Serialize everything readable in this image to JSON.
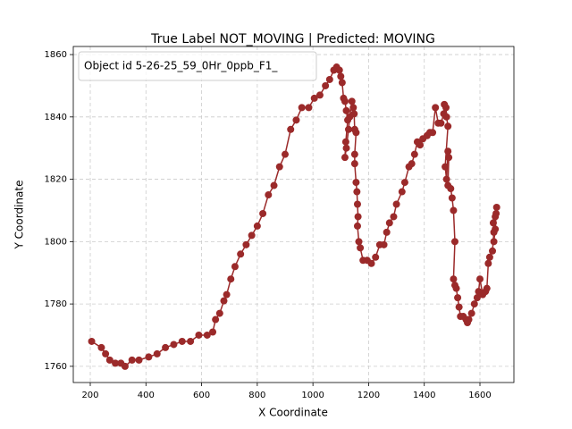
{
  "chart_data": {
    "type": "line",
    "title": "True Label NOT_MOVING | Predicted: MOVING",
    "x_label": "X Coordinate",
    "y_label": "Y Coordinate",
    "xlim": [
      139,
      1722
    ],
    "ylim": [
      1754.8,
      1862.6
    ],
    "xticks": [
      200,
      400,
      600,
      800,
      1000,
      1200,
      1400,
      1600
    ],
    "yticks": [
      1760,
      1780,
      1800,
      1820,
      1840,
      1860
    ],
    "grid": true,
    "legend": "upper left",
    "series": [
      {
        "name": "Object id 5-26-25_59_0Hr_0ppb_F1_",
        "color": "#9b2a2a",
        "x": [
          205,
          240,
          255,
          270,
          290,
          310,
          325,
          350,
          375,
          410,
          440,
          470,
          500,
          530,
          560,
          590,
          620,
          640,
          650,
          665,
          680,
          690,
          705,
          720,
          740,
          760,
          780,
          800,
          820,
          840,
          860,
          880,
          900,
          920,
          940,
          960,
          985,
          1005,
          1025,
          1045,
          1060,
          1075,
          1085,
          1095,
          1100,
          1105,
          1110,
          1115,
          1120,
          1125,
          1118,
          1115,
          1120,
          1128,
          1132,
          1140,
          1145,
          1148,
          1150,
          1155,
          1150,
          1150,
          1155,
          1158,
          1160,
          1162,
          1160,
          1165,
          1170,
          1180,
          1195,
          1210,
          1225,
          1240,
          1255,
          1265,
          1275,
          1290,
          1300,
          1320,
          1330,
          1345,
          1355,
          1365,
          1375,
          1385,
          1395,
          1410,
          1420,
          1430,
          1440,
          1450,
          1460,
          1470,
          1472,
          1478,
          1480,
          1485,
          1475,
          1480,
          1485,
          1488,
          1485,
          1495,
          1500,
          1505,
          1510,
          1505,
          1510,
          1515,
          1520,
          1525,
          1530,
          1540,
          1550,
          1555,
          1560,
          1570,
          1580,
          1590,
          1595,
          1600,
          1610,
          1620,
          1625,
          1630,
          1635,
          1645,
          1650,
          1648,
          1655,
          1660,
          1658,
          1655,
          1650
        ],
        "values": [
          1768,
          1766,
          1764,
          1762,
          1761,
          1761,
          1760,
          1762,
          1762,
          1763,
          1764,
          1766,
          1767,
          1768,
          1768,
          1770,
          1770,
          1771,
          1775,
          1777,
          1781,
          1783,
          1788,
          1792,
          1796,
          1799,
          1802,
          1805,
          1809,
          1815,
          1818,
          1824,
          1828,
          1836,
          1839,
          1843,
          1843,
          1846,
          1847,
          1850,
          1852,
          1855,
          1856,
          1855,
          1853,
          1851,
          1846,
          1845,
          1842,
          1839,
          1832,
          1827,
          1830,
          1836,
          1840,
          1845,
          1843,
          1841,
          1836,
          1835,
          1828,
          1825,
          1819,
          1816,
          1812,
          1808,
          1805,
          1800,
          1798,
          1794,
          1794,
          1793,
          1795,
          1799,
          1799,
          1803,
          1806,
          1808,
          1812,
          1816,
          1819,
          1824,
          1825,
          1828,
          1832,
          1831,
          1833,
          1834,
          1835,
          1835,
          1843,
          1838,
          1838,
          1841,
          1844,
          1843,
          1840,
          1837,
          1824,
          1820,
          1829,
          1827,
          1818,
          1817,
          1814,
          1810,
          1800,
          1788,
          1786,
          1785,
          1782,
          1779,
          1776,
          1776,
          1775,
          1774,
          1775,
          1777,
          1780,
          1782,
          1784,
          1788,
          1783,
          1784,
          1785,
          1793,
          1795,
          1797,
          1803,
          1806,
          1808,
          1811,
          1809,
          1804,
          1800
        ]
      }
    ]
  }
}
